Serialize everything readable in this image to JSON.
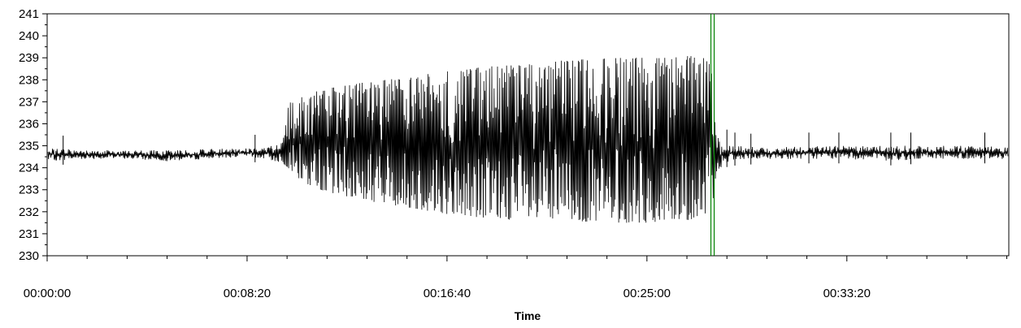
{
  "chart_data": {
    "type": "line",
    "title": "",
    "xlabel": "Time",
    "ylabel": "",
    "ylim": [
      230,
      241
    ],
    "xlim_seconds": [
      0,
      2405
    ],
    "y_ticks": [
      "230",
      "231",
      "232",
      "233",
      "234",
      "235",
      "236",
      "237",
      "238",
      "239",
      "240",
      "241"
    ],
    "x_ticks": [
      {
        "t": 0,
        "label": "00:00:00"
      },
      {
        "t": 500,
        "label": "00:08:20"
      },
      {
        "t": 1000,
        "label": "00:16:40"
      },
      {
        "t": 1500,
        "label": "00:25:00"
      },
      {
        "t": 2000,
        "label": "00:33:20"
      }
    ],
    "x_minor_step_seconds": 100,
    "series": [
      {
        "color": "#000000",
        "x_seconds": [
          0,
          100,
          200,
          300,
          500,
          540,
          590,
          602,
          640,
          700,
          800,
          900,
          1000,
          1100,
          1200,
          1300,
          1400,
          1500,
          1560,
          1600,
          1640,
          1650,
          1660,
          1672,
          1690,
          1720,
          1800,
          1900,
          2000,
          2100,
          2200,
          2300,
          2405
        ],
        "y_min": [
          234.3,
          234.4,
          234.4,
          234.3,
          234.5,
          234.4,
          234.2,
          234.0,
          233.3,
          232.9,
          232.5,
          232.2,
          231.9,
          231.7,
          231.6,
          231.6,
          231.5,
          231.5,
          231.5,
          231.6,
          231.5,
          231.7,
          231.8,
          233.5,
          234.2,
          234.3,
          234.4,
          234.4,
          234.4,
          234.3,
          234.4,
          234.4,
          234.4
        ],
        "y_max": [
          234.9,
          234.8,
          234.8,
          234.8,
          234.9,
          234.9,
          235.2,
          236.9,
          237.3,
          237.6,
          237.9,
          238.1,
          238.4,
          238.6,
          238.7,
          238.9,
          239.0,
          239.0,
          239.0,
          239.1,
          239.0,
          238.9,
          238.8,
          235.5,
          235.2,
          235.0,
          234.9,
          235.0,
          235.0,
          235.0,
          235.0,
          235.0,
          235.0
        ]
      }
    ],
    "marker": {
      "t": 1660,
      "color": "#008000"
    }
  }
}
